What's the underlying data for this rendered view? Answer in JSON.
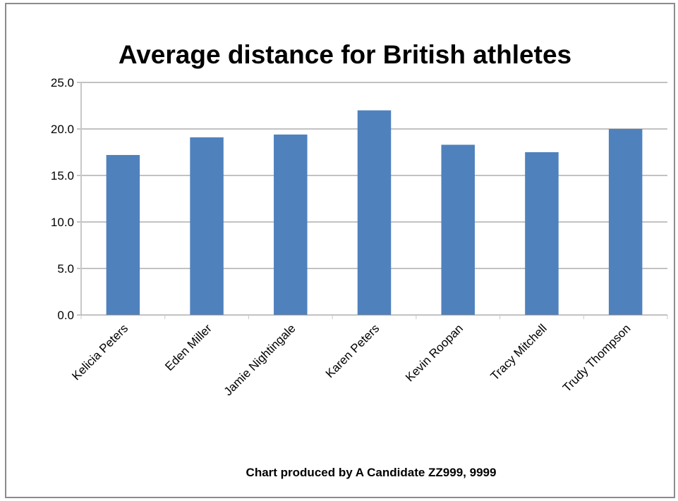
{
  "chart_data": {
    "type": "bar",
    "title": "Average distance for British athletes",
    "xlabel": "",
    "ylabel": "",
    "categories": [
      "Kelicia Peters",
      "Eden Miller",
      "Jamie Nightingale",
      "Karen Peters",
      "Kevin Roopan",
      "Tracy Mitchell",
      "Trudy Thompson"
    ],
    "values": [
      17.2,
      19.1,
      19.4,
      22.0,
      18.3,
      17.5,
      20.0
    ],
    "ylim": [
      0,
      25
    ],
    "yticks": [
      "0.0",
      "5.0",
      "10.0",
      "15.0",
      "20.0",
      "25.0"
    ],
    "grid": true,
    "legend": "none",
    "bar_color": "#4f81bd",
    "gridline_color": "#868686",
    "footnote": "Chart produced by A Candidate  ZZ999, 9999"
  }
}
